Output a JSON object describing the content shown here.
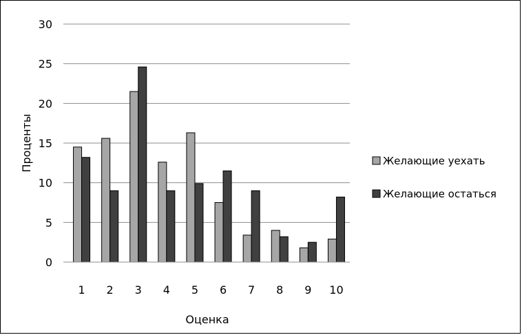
{
  "chart_data": {
    "type": "bar",
    "categories": [
      "1",
      "2",
      "3",
      "4",
      "5",
      "6",
      "7",
      "8",
      "9",
      "10"
    ],
    "series": [
      {
        "name": "Желающие уехать",
        "color": "#a6a6a6",
        "values": [
          14.5,
          15.6,
          21.5,
          12.6,
          16.3,
          7.5,
          3.4,
          4.0,
          1.8,
          2.9
        ]
      },
      {
        "name": "Желающие остаться",
        "color": "#404040",
        "values": [
          13.2,
          9.0,
          24.6,
          9.0,
          9.9,
          11.5,
          9.0,
          3.2,
          2.5,
          8.2
        ]
      }
    ],
    "xlabel": "Оценка",
    "ylabel": "Проценты",
    "ylim": [
      0,
      30
    ],
    "yticks": [
      "0",
      "5",
      "10",
      "15",
      "20",
      "25",
      "30"
    ],
    "grid": true,
    "legend": "right"
  }
}
